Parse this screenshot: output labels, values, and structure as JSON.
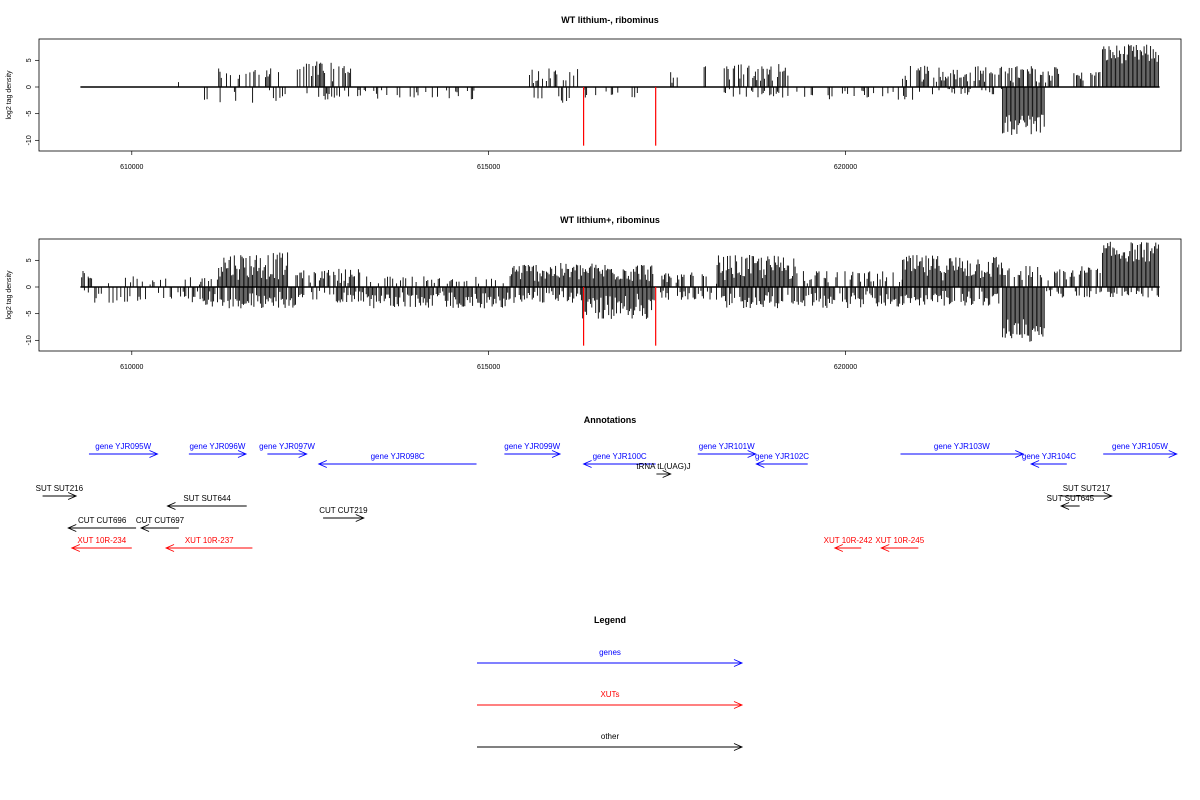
{
  "chart_data": [
    {
      "type": "bar",
      "title": "WT lithium-, ribominus",
      "ylabel": "log2 tag density",
      "xlim": [
        608700,
        624700
      ],
      "ylim": [
        -12,
        9
      ],
      "yticks": [
        -10,
        -5,
        0,
        5
      ],
      "xticks": [
        610000,
        615000,
        620000
      ],
      "xtick_labels": [
        "610000",
        "615000",
        "620000"
      ],
      "ytick_labels": [
        "-10",
        "-5",
        "0",
        "5"
      ],
      "bar_color": "#000000",
      "highlight_color": "#ff0000",
      "highlight_bars": [
        {
          "x": 616330,
          "value": -11
        },
        {
          "x": 617340,
          "value": -11
        }
      ],
      "series": [
        {
          "name": "plus strand",
          "regions": [
            {
              "x0": 609280,
              "x1": 609320,
              "peak": 3,
              "density": 0.1
            },
            {
              "x0": 610600,
              "x1": 610700,
              "peak": 1,
              "density": 0.2
            },
            {
              "x0": 611200,
              "x1": 612100,
              "peak": 4,
              "density": 0.35
            },
            {
              "x0": 612300,
              "x1": 613100,
              "peak": 5,
              "density": 0.6
            },
            {
              "x0": 615500,
              "x1": 616300,
              "peak": 3.5,
              "density": 0.4
            },
            {
              "x0": 617550,
              "x1": 617650,
              "peak": 3,
              "density": 0.5
            },
            {
              "x0": 618000,
              "x1": 618100,
              "peak": 4,
              "density": 0.3
            },
            {
              "x0": 618300,
              "x1": 619200,
              "peak": 4.5,
              "density": 0.7
            },
            {
              "x0": 620800,
              "x1": 623000,
              "peak": 4,
              "density": 0.7
            },
            {
              "x0": 623200,
              "x1": 623600,
              "peak": 3,
              "density": 0.5
            },
            {
              "x0": 623600,
              "x1": 624400,
              "peak": 8,
              "density": 1.0
            }
          ]
        },
        {
          "name": "minus strand",
          "regions": [
            {
              "x0": 609800,
              "x1": 609850,
              "peak": 2.5,
              "density": 0.2
            },
            {
              "x0": 611000,
              "x1": 612200,
              "peak": 3,
              "density": 0.2
            },
            {
              "x0": 612400,
              "x1": 613300,
              "peak": 2.5,
              "density": 0.2
            },
            {
              "x0": 613300,
              "x1": 615000,
              "peak": 2.5,
              "density": 0.25
            },
            {
              "x0": 615600,
              "x1": 616200,
              "peak": 3,
              "density": 0.25
            },
            {
              "x0": 616300,
              "x1": 617300,
              "peak": 2,
              "density": 0.3
            },
            {
              "x0": 618300,
              "x1": 619300,
              "peak": 2,
              "density": 0.3
            },
            {
              "x0": 619300,
              "x1": 621000,
              "peak": 2.5,
              "density": 0.25
            },
            {
              "x0": 621000,
              "x1": 622200,
              "peak": 1.5,
              "density": 0.2
            },
            {
              "x0": 622200,
              "x1": 622800,
              "peak": 9,
              "density": 1.0
            }
          ]
        }
      ]
    },
    {
      "type": "bar",
      "title": "WT lithium+, ribominus",
      "ylabel": "log2 tag density",
      "xlim": [
        608700,
        624700
      ],
      "ylim": [
        -12,
        9
      ],
      "yticks": [
        -10,
        -5,
        0,
        5
      ],
      "xticks": [
        610000,
        615000,
        620000
      ],
      "xtick_labels": [
        "610000",
        "615000",
        "620000"
      ],
      "ytick_labels": [
        "-10",
        "-5",
        "0",
        "5"
      ],
      "bar_color": "#000000",
      "highlight_color": "#ff0000",
      "highlight_bars": [
        {
          "x": 616330,
          "value": -11
        },
        {
          "x": 617340,
          "value": -11
        }
      ],
      "series": [
        {
          "name": "plus strand",
          "regions": [
            {
              "x0": 609280,
              "x1": 609400,
              "peak": 3,
              "density": 0.5
            },
            {
              "x0": 609400,
              "x1": 611200,
              "peak": 2,
              "density": 0.3
            },
            {
              "x0": 611200,
              "x1": 612200,
              "peak": 6.5,
              "density": 1.0
            },
            {
              "x0": 612300,
              "x1": 613200,
              "peak": 3.5,
              "density": 0.7
            },
            {
              "x0": 613200,
              "x1": 615300,
              "peak": 2,
              "density": 0.3
            },
            {
              "x0": 615300,
              "x1": 617300,
              "peak": 4.5,
              "density": 1.0
            },
            {
              "x0": 617300,
              "x1": 618200,
              "peak": 3,
              "density": 0.5
            },
            {
              "x0": 618200,
              "x1": 619300,
              "peak": 6,
              "density": 1.0
            },
            {
              "x0": 619300,
              "x1": 620800,
              "peak": 3,
              "density": 0.5
            },
            {
              "x0": 620800,
              "x1": 622200,
              "peak": 6,
              "density": 1.0
            },
            {
              "x0": 622200,
              "x1": 623600,
              "peak": 4,
              "density": 0.6
            },
            {
              "x0": 623600,
              "x1": 624400,
              "peak": 8.5,
              "density": 1.0
            }
          ]
        },
        {
          "name": "minus strand",
          "regions": [
            {
              "x0": 609300,
              "x1": 611000,
              "peak": 3,
              "density": 0.4
            },
            {
              "x0": 611000,
              "x1": 612300,
              "peak": 4,
              "density": 0.8
            },
            {
              "x0": 612300,
              "x1": 613300,
              "peak": 3,
              "density": 0.5
            },
            {
              "x0": 613300,
              "x1": 615300,
              "peak": 4,
              "density": 0.9
            },
            {
              "x0": 615300,
              "x1": 616300,
              "peak": 3,
              "density": 0.7
            },
            {
              "x0": 616300,
              "x1": 617300,
              "peak": 6,
              "density": 1.0
            },
            {
              "x0": 617300,
              "x1": 618300,
              "peak": 2.5,
              "density": 0.5
            },
            {
              "x0": 618300,
              "x1": 620800,
              "peak": 4,
              "density": 0.8
            },
            {
              "x0": 620800,
              "x1": 622200,
              "peak": 3.5,
              "density": 0.8
            },
            {
              "x0": 622200,
              "x1": 622800,
              "peak": 10.5,
              "density": 1.0
            },
            {
              "x0": 622800,
              "x1": 624400,
              "peak": 2,
              "density": 0.4
            }
          ]
        }
      ]
    }
  ],
  "annotations": {
    "title": "Annotations",
    "xlim": [
      608700,
      624700
    ],
    "colors": {
      "gene": "#0000ff",
      "xut": "#ff0000",
      "other": "#000000"
    },
    "features": [
      {
        "label": "gene YJR095W",
        "kind": "gene",
        "start": 609400,
        "end": 610360,
        "strand": "+",
        "row": 0
      },
      {
        "label": "gene YJR096W",
        "kind": "gene",
        "start": 610800,
        "end": 611600,
        "strand": "+",
        "row": 0
      },
      {
        "label": "gene YJR097W",
        "kind": "gene",
        "start": 611900,
        "end": 612450,
        "strand": "+",
        "row": 0
      },
      {
        "label": "gene YJR098C",
        "kind": "gene",
        "start": 612620,
        "end": 614830,
        "strand": "-",
        "row": 1
      },
      {
        "label": "gene YJR099W",
        "kind": "gene",
        "start": 615220,
        "end": 616000,
        "strand": "+",
        "row": 0
      },
      {
        "label": "gene YJR100C",
        "kind": "gene",
        "start": 616330,
        "end": 617340,
        "strand": "-",
        "row": 1
      },
      {
        "label": "tRNA tL(UAG)J",
        "kind": "other",
        "start": 617350,
        "end": 617550,
        "strand": "+",
        "row": 2
      },
      {
        "label": "gene YJR101W",
        "kind": "gene",
        "start": 617930,
        "end": 618740,
        "strand": "+",
        "row": 0
      },
      {
        "label": "gene YJR102C",
        "kind": "gene",
        "start": 618750,
        "end": 619470,
        "strand": "-",
        "row": 1
      },
      {
        "label": "gene YJR103W",
        "kind": "gene",
        "start": 620770,
        "end": 622490,
        "strand": "+",
        "row": 0
      },
      {
        "label": "gene YJR104C",
        "kind": "gene",
        "start": 622600,
        "end": 623100,
        "strand": "-",
        "row": 1
      },
      {
        "label": "gene YJR105W",
        "kind": "gene",
        "start": 623610,
        "end": 624640,
        "strand": "+",
        "row": 0
      },
      {
        "label": "SUT SUT216",
        "kind": "other",
        "start": 608750,
        "end": 609220,
        "strand": "+",
        "row": 3
      },
      {
        "label": "SUT SUT644",
        "kind": "other",
        "start": 610500,
        "end": 611610,
        "strand": "-",
        "row": 4
      },
      {
        "label": "CUT CUT219",
        "kind": "other",
        "start": 612680,
        "end": 613250,
        "strand": "+",
        "row": 5
      },
      {
        "label": "CUT CUT696",
        "kind": "other",
        "start": 609110,
        "end": 610060,
        "strand": "-",
        "row": 6
      },
      {
        "label": "CUT CUT697",
        "kind": "other",
        "start": 610130,
        "end": 610660,
        "strand": "-",
        "row": 6
      },
      {
        "label": "SUT SUT217",
        "kind": "other",
        "start": 623020,
        "end": 623730,
        "strand": "+",
        "row": 3
      },
      {
        "label": "SUT SUT645",
        "kind": "other",
        "start": 623020,
        "end": 623280,
        "strand": "-",
        "row": 4
      },
      {
        "label": "XUT 10R-234",
        "kind": "xut",
        "start": 609160,
        "end": 610000,
        "strand": "-",
        "row": 7
      },
      {
        "label": "XUT 10R-237",
        "kind": "xut",
        "start": 610480,
        "end": 611690,
        "strand": "-",
        "row": 7
      },
      {
        "label": "XUT 10R-242",
        "kind": "xut",
        "start": 619850,
        "end": 620220,
        "strand": "-",
        "row": 7
      },
      {
        "label": "XUT 10R-245",
        "kind": "xut",
        "start": 620500,
        "end": 621020,
        "strand": "-",
        "row": 7
      }
    ]
  },
  "legend": {
    "title": "Legend",
    "items": [
      {
        "label": "genes",
        "color": "#0000ff"
      },
      {
        "label": "XUTs",
        "color": "#ff0000"
      },
      {
        "label": "other",
        "color": "#000000"
      }
    ]
  }
}
